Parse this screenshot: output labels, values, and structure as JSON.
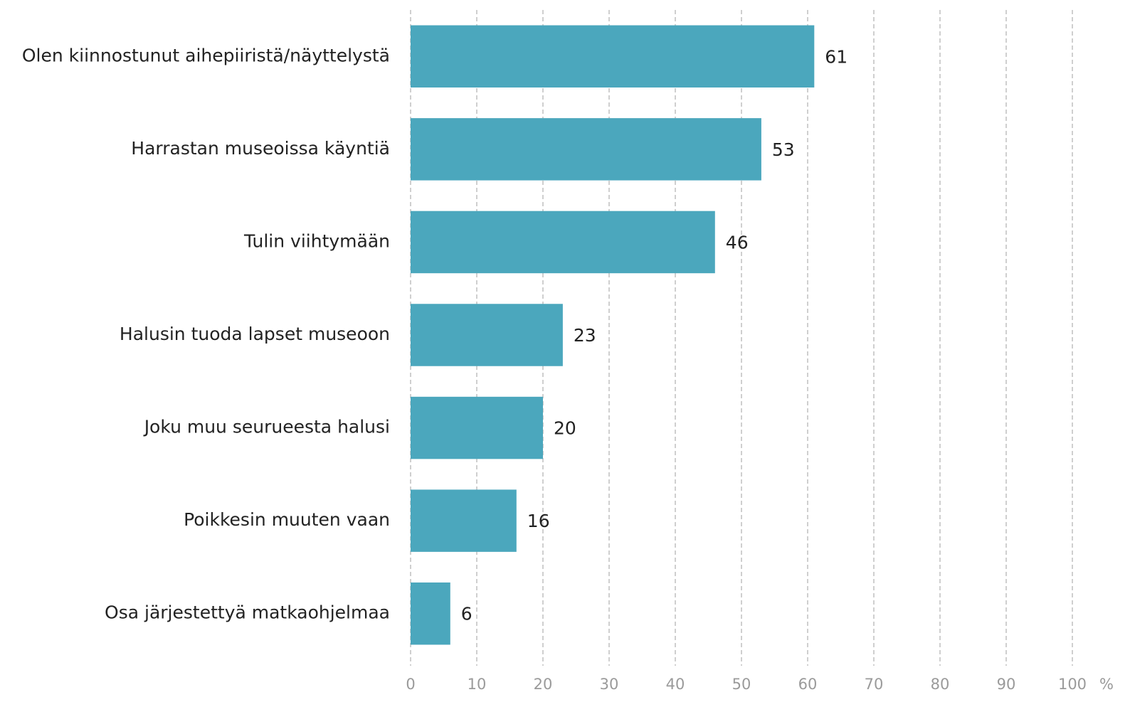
{
  "chart_data": {
    "type": "bar",
    "orientation": "horizontal",
    "categories": [
      "Olen kiinnostunut aihepiiristä/näyttelystä",
      "Harrastan museoissa käyntiä",
      "Tulin viihtymään",
      "Halusin tuoda lapset museoon",
      "Joku muu seurueesta halusi",
      "Poikkesin muuten vaan",
      "Osa järjestettyä matkaohjelmaa"
    ],
    "values": [
      61,
      53,
      46,
      23,
      20,
      16,
      6
    ],
    "color": "#4ba7bd",
    "xlim": [
      0,
      100
    ],
    "xticks": [
      0,
      10,
      20,
      30,
      40,
      50,
      60,
      70,
      80,
      90,
      100
    ],
    "xlabel": "%",
    "grid": true
  }
}
